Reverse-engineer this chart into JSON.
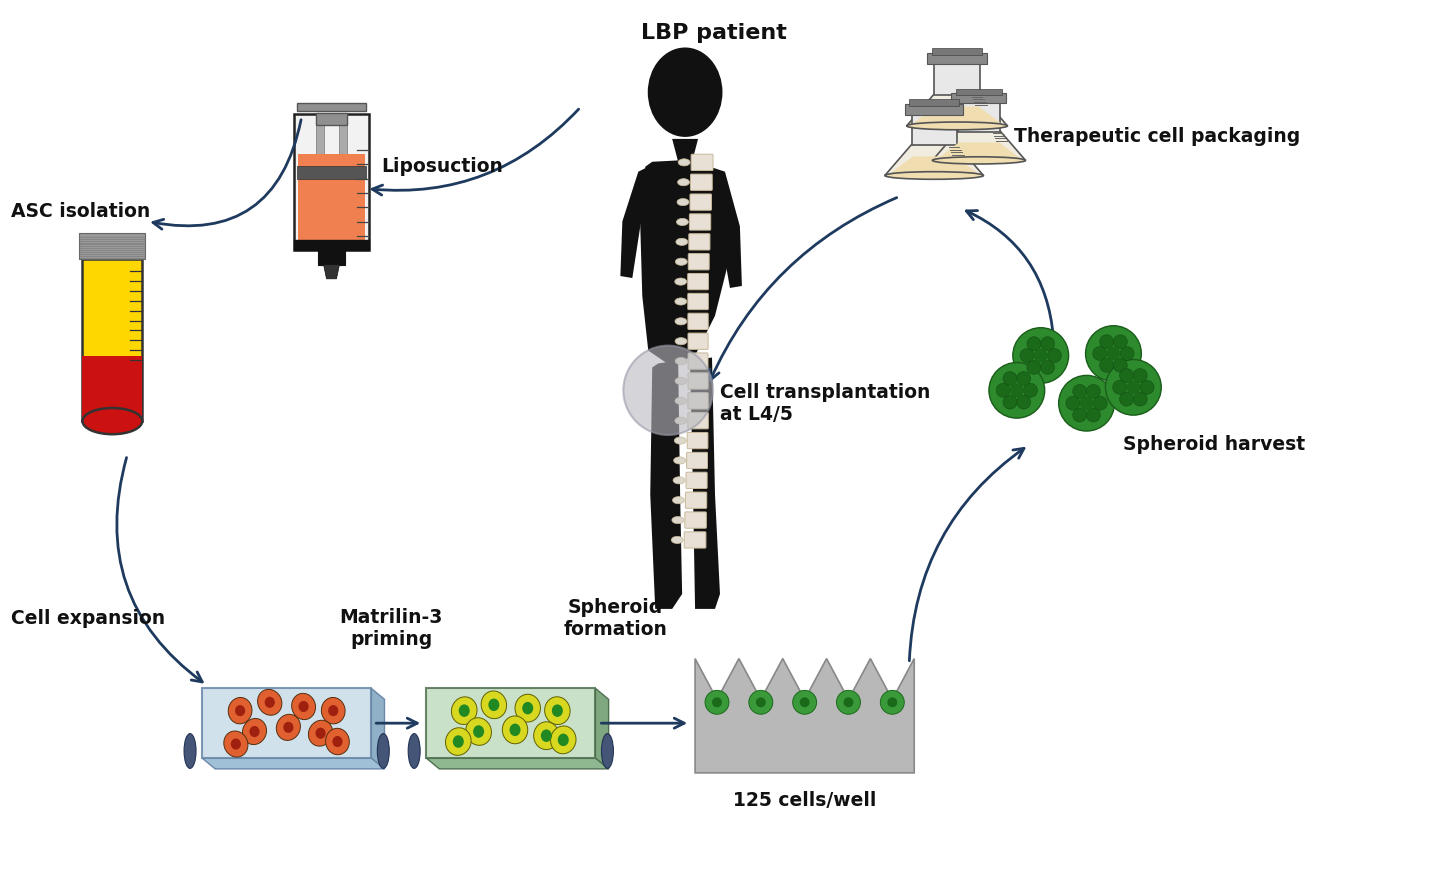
{
  "title": "LBP patient",
  "bg_color": "#ffffff",
  "arrow_color": "#1e3a5f",
  "labels": {
    "liposuction": "Liposuction",
    "asc_isolation": "ASC isolation",
    "cell_expansion": "Cell expansion",
    "matrilin": "Matrilin-3\npriming",
    "spheroid_formation": "Spheroid\nformation",
    "cells_well": "125 cells/well",
    "spheroid_harvest": "Spheroid harvest",
    "therapeutic": "Therapeutic cell packaging",
    "cell_transplantation": "Cell transplantation\nat L4/5"
  }
}
